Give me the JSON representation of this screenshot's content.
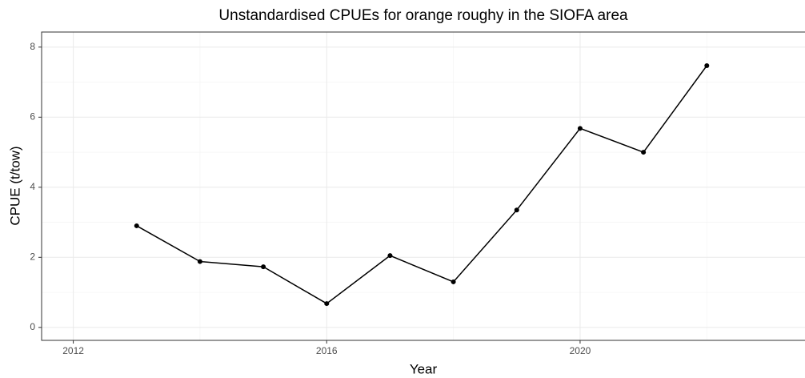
{
  "chart_data": {
    "type": "line",
    "title": "Unstandardised CPUEs for orange roughy in the SIOFA area",
    "x_label": "Year",
    "y_label": "CPUE (t/tow)",
    "x": [
      2013,
      2014,
      2015,
      2016,
      2017,
      2018,
      2019,
      2020,
      2021,
      2022
    ],
    "series": [
      {
        "name": "CPUE",
        "color": "#000000",
        "values": [
          2.9,
          1.88,
          1.73,
          0.68,
          2.05,
          1.3,
          3.35,
          5.68,
          5.0,
          7.47
        ]
      }
    ],
    "xlim": [
      2011.5,
      2023.55
    ],
    "xticks": [
      2012,
      2016,
      2020
    ],
    "ylim": [
      -0.37,
      8.43
    ],
    "yticks": [
      0,
      2,
      4,
      6,
      8
    ],
    "grid": true,
    "minor_grid": true
  }
}
